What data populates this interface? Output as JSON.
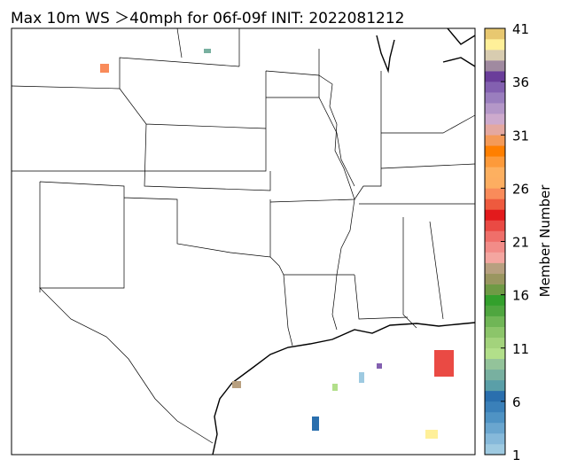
{
  "title": "Max 10m WS ＞40mph for 06f-09f INIT: 2022081212",
  "colorbar": {
    "label": "Member Number",
    "lim": [
      1,
      41
    ],
    "ticks": [
      1,
      6,
      11,
      16,
      21,
      26,
      31,
      36,
      41
    ],
    "colors": [
      "#9ecae1",
      "#86b9da",
      "#6aa6cf",
      "#4f93c4",
      "#3a80b9",
      "#2a6fae",
      "#5a9fa8",
      "#78b0a0",
      "#93c39a",
      "#b2df8a",
      "#a3d37c",
      "#8cc56a",
      "#70b656",
      "#4fa63f",
      "#33a02c",
      "#6f9a45",
      "#9a9660",
      "#b8a080",
      "#f4a6a0",
      "#f28c88",
      "#ef6f6a",
      "#ea4a44",
      "#e31a1c",
      "#ee5a3e",
      "#f98b5a",
      "#fdae61",
      "#fdb060",
      "#fd9a3a",
      "#ff7f00",
      "#f49a58",
      "#e4a8a0",
      "#cdaacd",
      "#b497c8",
      "#9a7ebe",
      "#8360b0",
      "#6a3d9a",
      "#a08aa0",
      "#d8ccb0",
      "#fff099",
      "#e8c870"
    ]
  }
}
